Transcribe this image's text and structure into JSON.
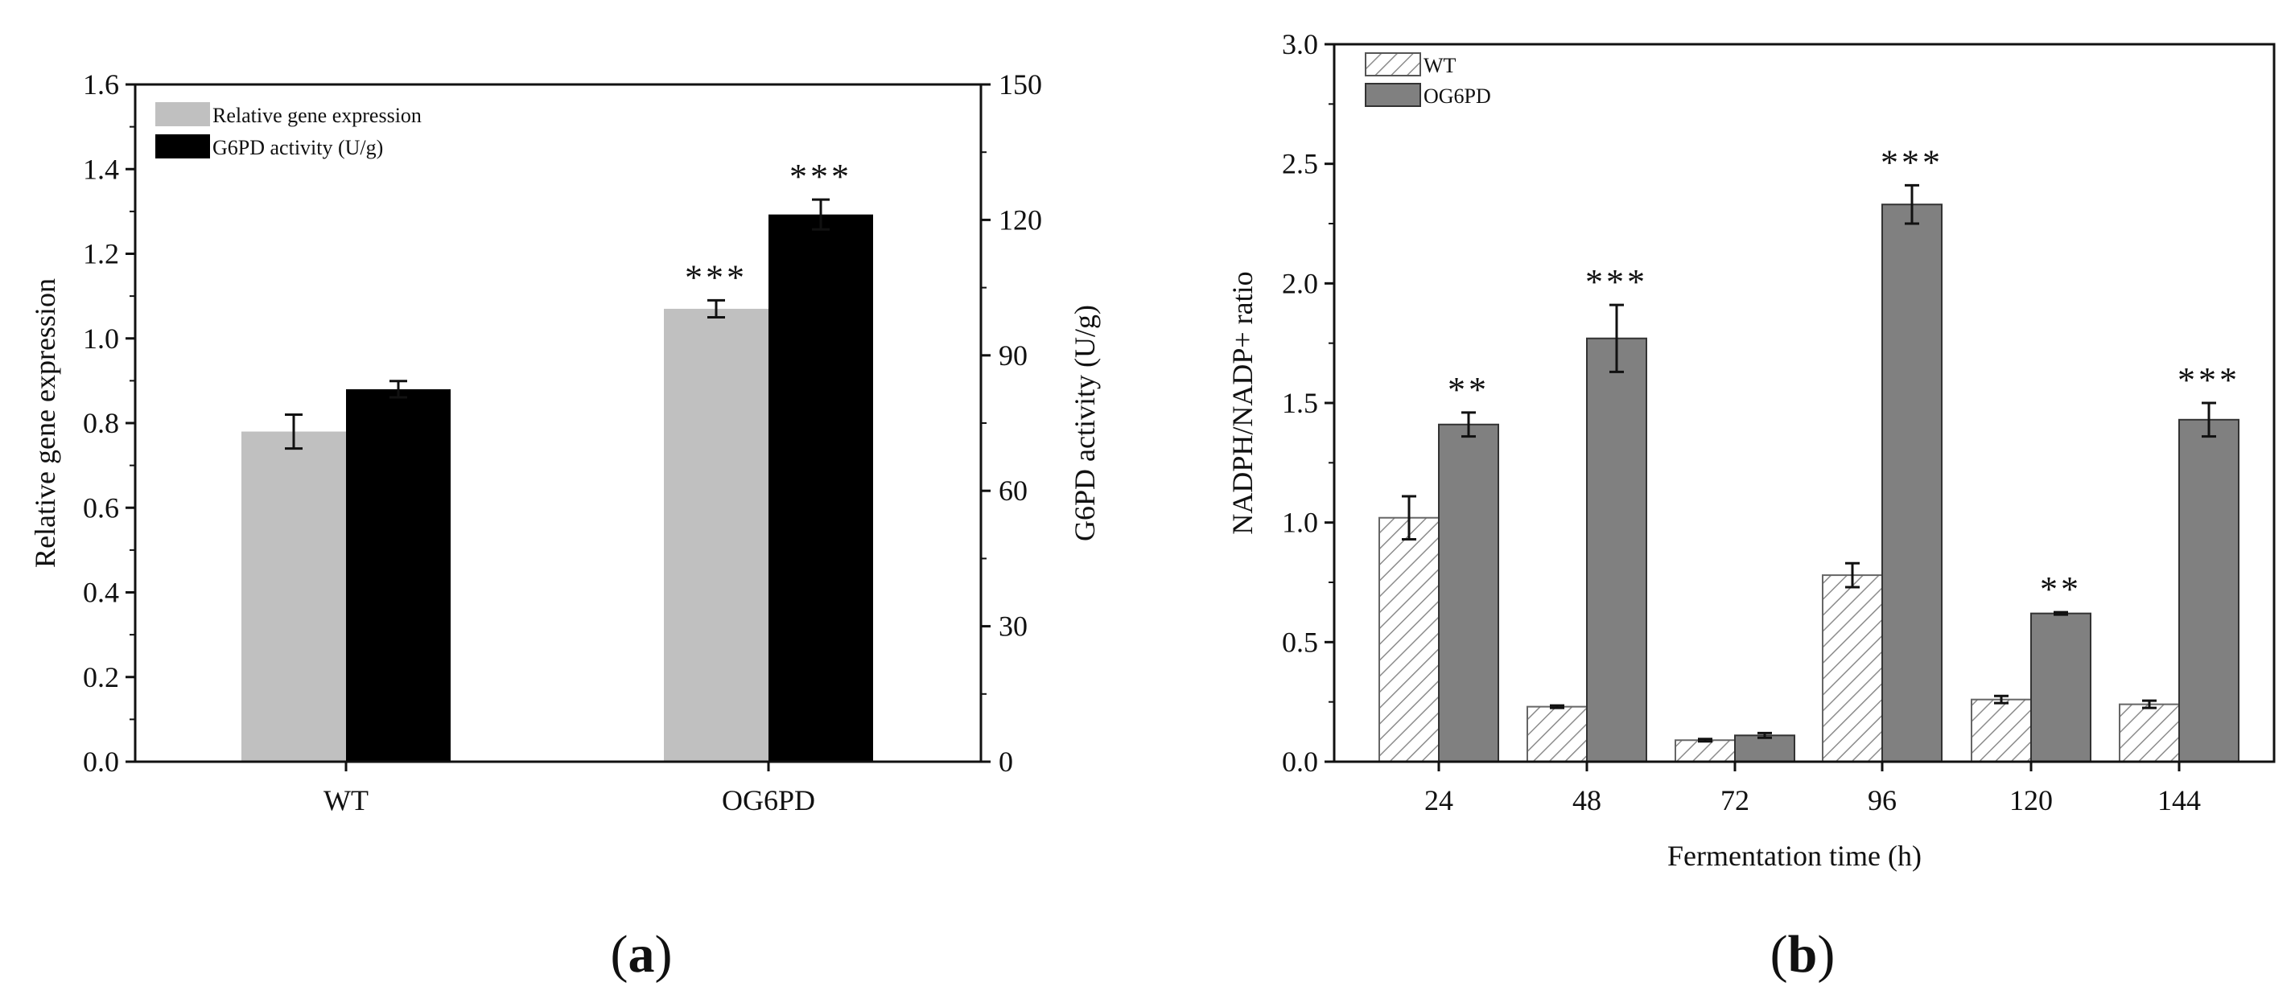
{
  "chart_data": [
    {
      "type": "bar",
      "panel": "(a)",
      "panel_letter": "a",
      "categories": [
        "WT",
        "OG6PD"
      ],
      "series": [
        {
          "name": "Relative gene expression",
          "axis": "left",
          "color": "#c0c0c0",
          "values": [
            0.78,
            1.07
          ],
          "errors": [
            0.04,
            0.02
          ],
          "significance": [
            "",
            "***"
          ]
        },
        {
          "name": "G6PD activity (U/g)",
          "axis": "right",
          "color": "#000000",
          "values": [
            82.5,
            121.2
          ],
          "errors": [
            1.8,
            3.3
          ],
          "significance": [
            "",
            "***"
          ]
        }
      ],
      "ylabel": "Relative gene expression",
      "ylim": [
        0,
        1.6
      ],
      "yticks": [
        "0.0",
        "0.2",
        "0.4",
        "0.6",
        "0.8",
        "1.0",
        "1.2",
        "1.4",
        "1.6"
      ],
      "y2label": "G6PD activity (U/g)",
      "y2lim": [
        0,
        150
      ],
      "y2ticks": [
        "0",
        "30",
        "60",
        "90",
        "120",
        "150"
      ],
      "legend": "top-left",
      "grid": false
    },
    {
      "type": "bar",
      "panel": "(b)",
      "panel_letter": "b",
      "categories": [
        "24",
        "48",
        "72",
        "96",
        "120",
        "144"
      ],
      "series": [
        {
          "name": "WT",
          "pattern": "hatched",
          "color": "#ffffff",
          "values": [
            1.02,
            0.23,
            0.09,
            0.78,
            0.26,
            0.24
          ],
          "errors": [
            0.09,
            0.005,
            0.005,
            0.05,
            0.015,
            0.015
          ],
          "significance": [
            "",
            "",
            "",
            "",
            "",
            ""
          ]
        },
        {
          "name": "OG6PD",
          "color": "#808080",
          "values": [
            1.41,
            1.77,
            0.11,
            2.33,
            0.62,
            1.43
          ],
          "errors": [
            0.05,
            0.14,
            0.01,
            0.08,
            0.005,
            0.07
          ],
          "significance": [
            "**",
            "***",
            "",
            "***",
            "**",
            "***"
          ]
        }
      ],
      "xlabel": "Fermentation time (h)",
      "ylabel": "NADPH/NADP+ ratio",
      "ylim": [
        0,
        3.0
      ],
      "yticks": [
        "0.0",
        "0.5",
        "1.0",
        "1.5",
        "2.0",
        "2.5",
        "3.0"
      ],
      "legend": "top-left",
      "grid": false
    }
  ]
}
